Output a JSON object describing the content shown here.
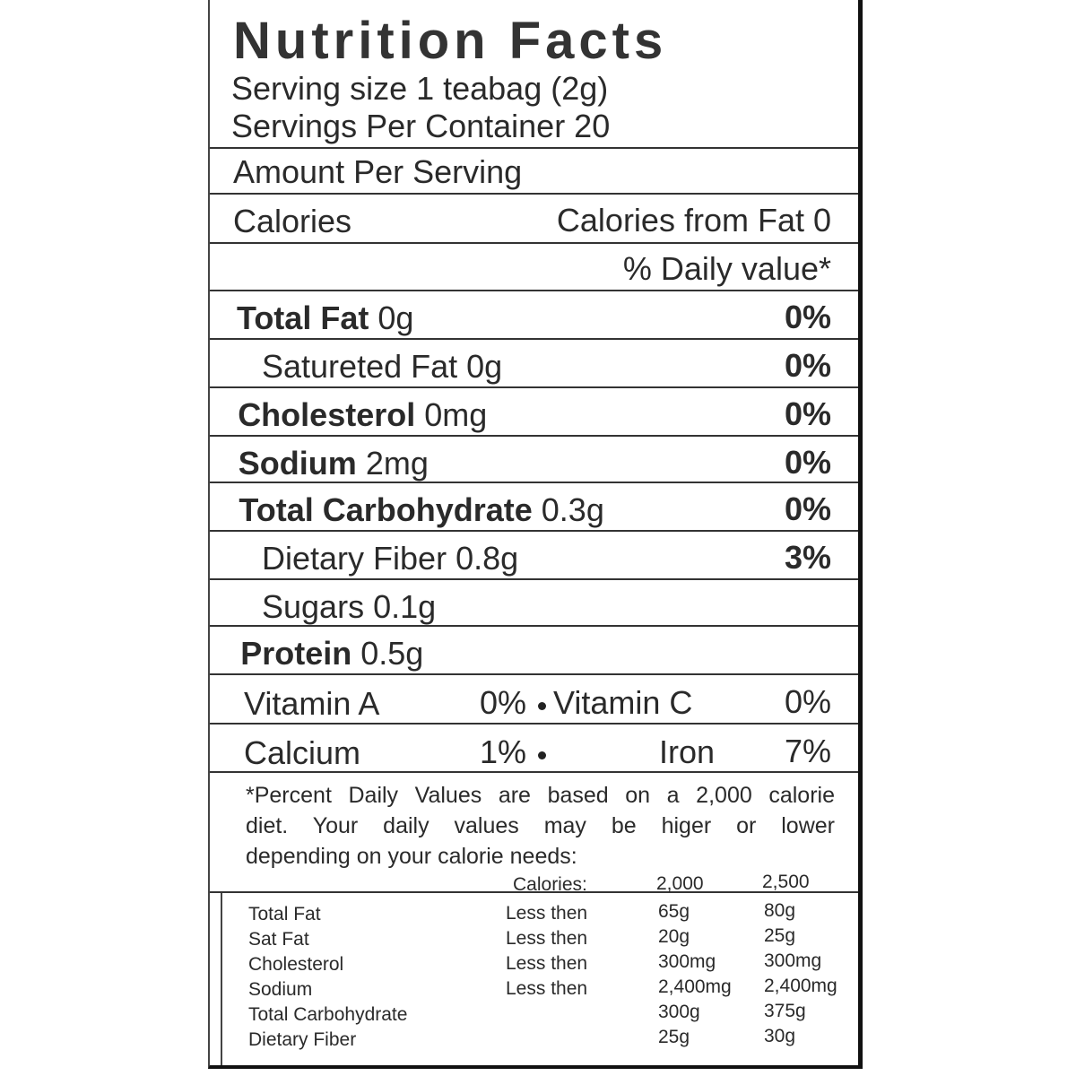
{
  "title": "Nutrition Facts",
  "serving_size": "Serving size 1 teabag (2g)",
  "servings_per_container": "Servings Per Container 20",
  "amount_per_serving": "Amount Per Serving",
  "calories": {
    "label": "Calories",
    "from_fat": "Calories from Fat 0"
  },
  "daily_value_header": "% Daily value*",
  "nutrients": [
    {
      "name": "Total Fat",
      "amount": "0g",
      "dv": "0%"
    },
    {
      "name": "Satureted Fat",
      "amount": "0g",
      "dv": "0%"
    },
    {
      "name": "Cholesterol",
      "amount": "0mg",
      "dv": "0%"
    },
    {
      "name": "Sodium",
      "amount": "2mg",
      "dv": "0%"
    },
    {
      "name": "Total Carbohydrate",
      "amount": "0.3g",
      "dv": "0%"
    },
    {
      "name": "Dietary Fiber",
      "amount": "0.8g",
      "dv": "3%"
    },
    {
      "name": "Sugars",
      "amount": "0.1g"
    },
    {
      "name": "Protein",
      "amount": "0.5g"
    }
  ],
  "vitamins": [
    [
      "Vitamin A",
      "0%",
      "Vitamin C",
      "0%"
    ],
    [
      "Calcium",
      "1%",
      "Iron",
      "7%"
    ]
  ],
  "footnote": [
    "*Percent Daily Values are based on a 2,000 calorie",
    "diet. Your daily values may be higer or lower",
    "depending on your calorie needs:"
  ],
  "reference": {
    "header": [
      "Calories:",
      "2,000",
      "2,500"
    ],
    "rows": [
      {
        "name": "Total Fat",
        "limit": "Less then",
        "v2000": "65g",
        "v2500": "80g"
      },
      {
        "name": "Sat Fat",
        "limit": "Less then",
        "v2000": "20g",
        "v2500": "25g"
      },
      {
        "name": "Cholesterol",
        "limit": "Less then",
        "v2000": "300mg",
        "v2500": "300mg"
      },
      {
        "name": "Sodium",
        "limit": "Less then",
        "v2000": "2,400mg",
        "v2500": "2,400mg"
      },
      {
        "name": "Total Carbohydrate",
        "v2000": "300g",
        "v2500": "375g"
      },
      {
        "name": "Dietary Fiber",
        "v2000": "25g",
        "v2500": "30g"
      }
    ]
  }
}
